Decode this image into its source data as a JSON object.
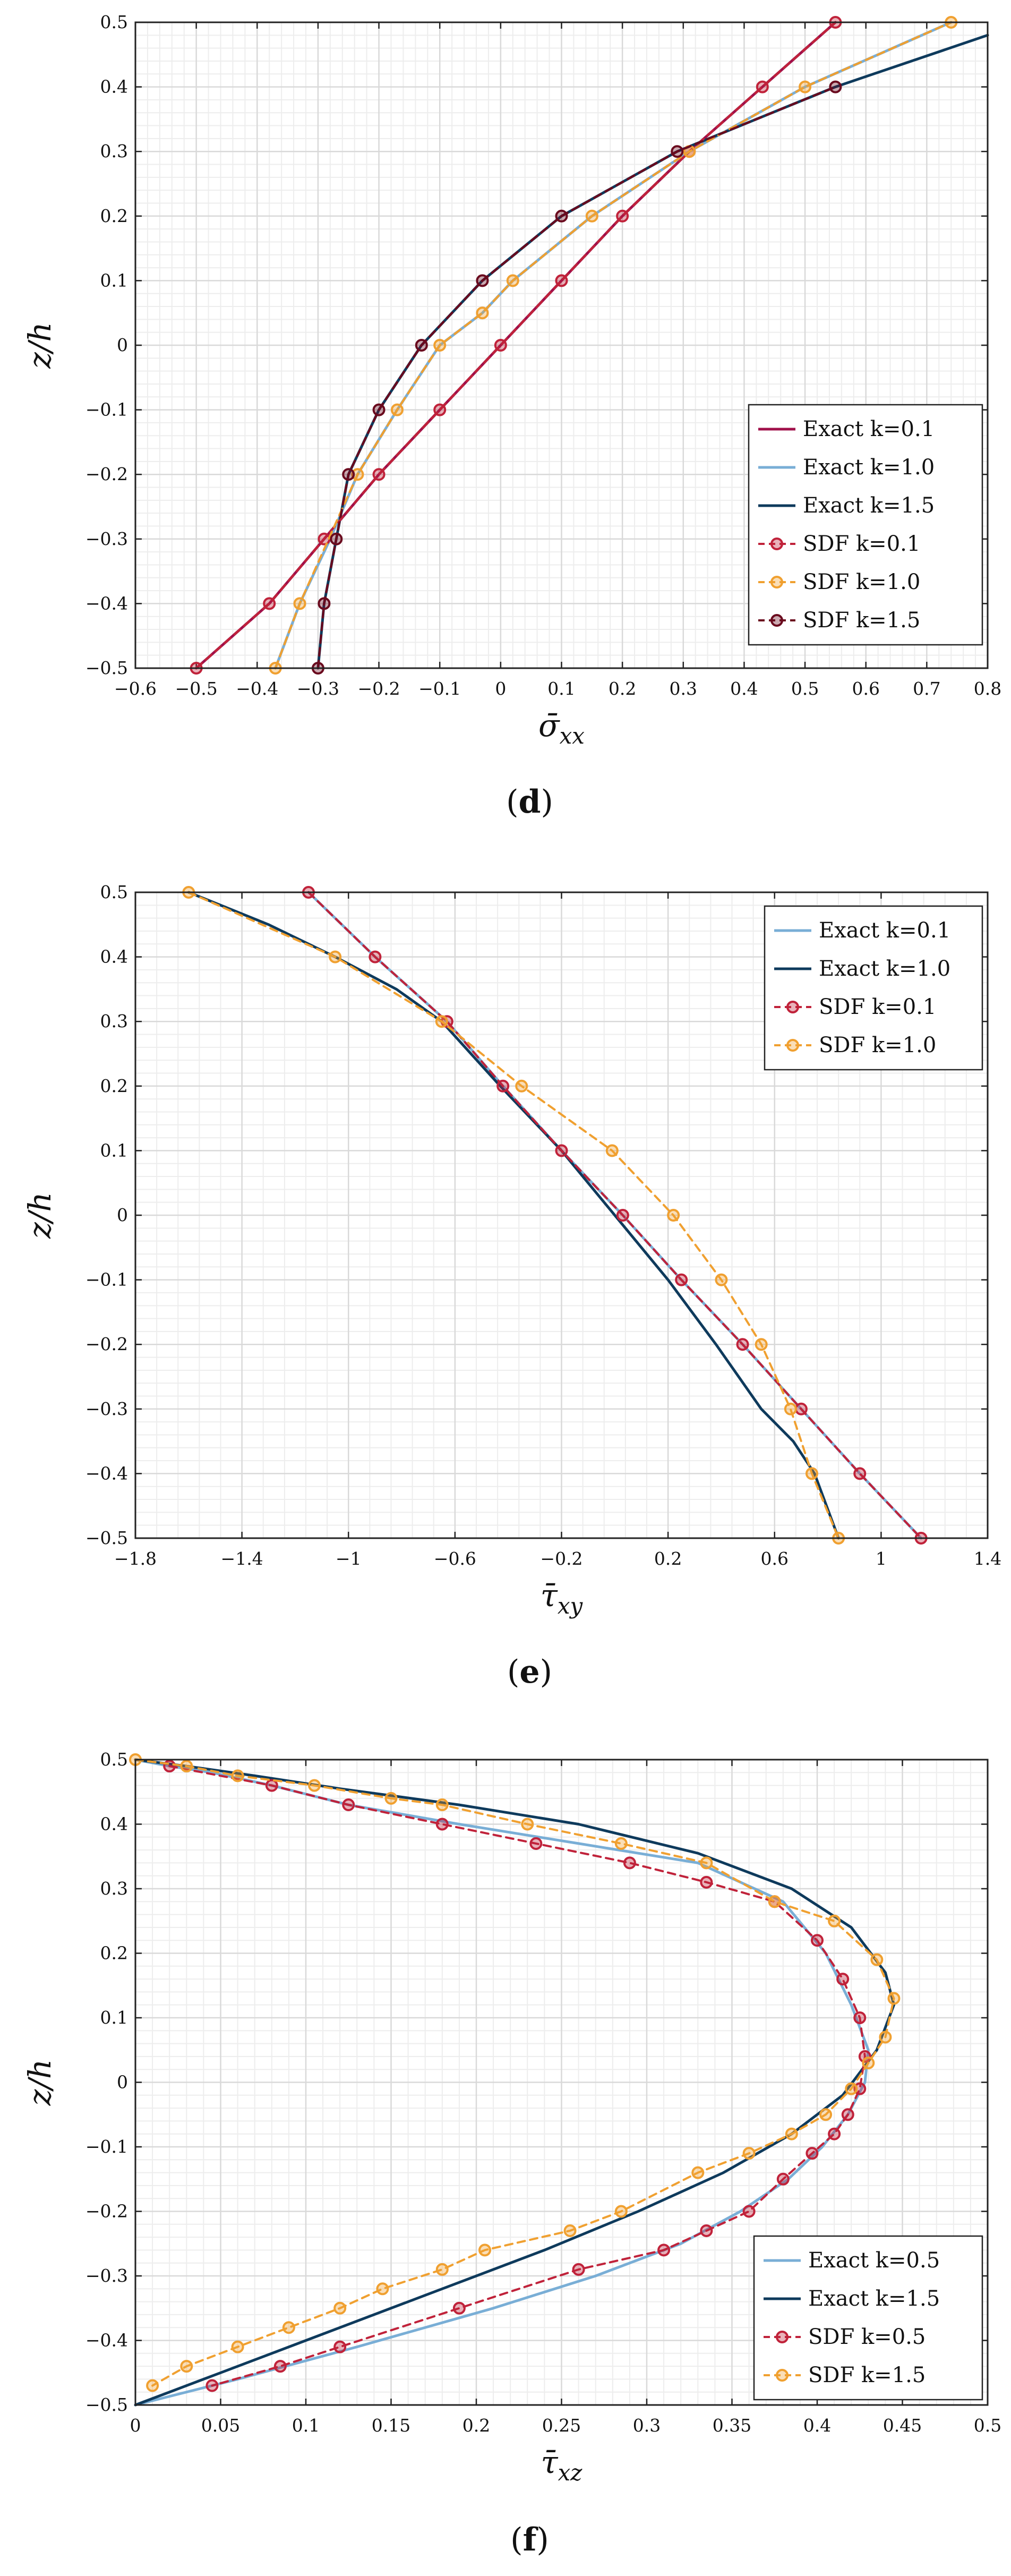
{
  "chart_data": [
    {
      "type": "line",
      "panel_label": "(d)",
      "xlabel": "σ̄_xx",
      "ylabel": "z/h",
      "xlim": [
        -0.6,
        0.8
      ],
      "ylim": [
        -0.5,
        0.5
      ],
      "xticks": [
        -0.6,
        -0.5,
        -0.4,
        -0.3,
        -0.2,
        -0.1,
        0,
        0.1,
        0.2,
        0.3,
        0.4,
        0.5,
        0.6,
        0.7,
        0.8
      ],
      "xtick_labels": [
        "−0.6",
        "−0.5",
        "−0.4",
        "−0.3",
        "−0.2",
        "−0.1",
        "0",
        "0.1",
        "0.2",
        "0.3",
        "0.4",
        "0.5",
        "0.6",
        "0.7",
        "0.8"
      ],
      "yticks": [
        -0.5,
        -0.4,
        -0.3,
        -0.2,
        -0.1,
        0,
        0.1,
        0.2,
        0.3,
        0.4,
        0.5
      ],
      "ytick_labels": [
        "−0.5",
        "−0.4",
        "−0.3",
        "−0.2",
        "−0.1",
        "0",
        "0.1",
        "0.2",
        "0.3",
        "0.4",
        "0.5"
      ],
      "grid": true,
      "legend_position": "lower-right",
      "series": [
        {
          "name": "Exact k=0.1",
          "style": "solid",
          "color": "#a0104a",
          "x": [
            -0.5,
            -0.38,
            -0.29,
            -0.2,
            -0.1,
            0,
            0.1,
            0.2,
            0.31,
            0.43,
            0.55
          ],
          "y": [
            -0.5,
            -0.4,
            -0.3,
            -0.2,
            -0.1,
            0,
            0.1,
            0.2,
            0.3,
            0.4,
            0.5
          ]
        },
        {
          "name": "Exact k=1.0",
          "style": "solid",
          "color": "#79aed6",
          "x": [
            -0.37,
            -0.33,
            -0.28,
            -0.235,
            -0.17,
            -0.1,
            -0.03,
            0.02,
            0.15,
            0.31,
            0.5,
            0.74
          ],
          "y": [
            -0.5,
            -0.4,
            -0.3,
            -0.2,
            -0.1,
            0,
            0.05,
            0.1,
            0.2,
            0.3,
            0.4,
            0.5
          ]
        },
        {
          "name": "Exact k=1.5",
          "style": "solid",
          "color": "#0e3a5c",
          "x": [
            -0.3,
            -0.29,
            -0.27,
            -0.25,
            -0.2,
            -0.13,
            -0.03,
            0.1,
            0.29,
            0.55,
            0.8
          ],
          "y": [
            -0.5,
            -0.4,
            -0.3,
            -0.2,
            -0.1,
            0,
            0.1,
            0.2,
            0.3,
            0.4,
            0.48
          ]
        },
        {
          "name": "SDF k=0.1",
          "style": "dashed",
          "color": "#c0223a",
          "markers": true,
          "x": [
            -0.5,
            -0.38,
            -0.29,
            -0.2,
            -0.1,
            0,
            0.1,
            0.2,
            0.31,
            0.43,
            0.55
          ],
          "y": [
            -0.5,
            -0.4,
            -0.3,
            -0.2,
            -0.1,
            0,
            0.1,
            0.2,
            0.3,
            0.4,
            0.5
          ]
        },
        {
          "name": "SDF k=1.0",
          "style": "dashed",
          "color": "#f0a030",
          "markers": true,
          "x": [
            -0.37,
            -0.33,
            -0.235,
            -0.17,
            -0.1,
            -0.03,
            0.02,
            0.15,
            0.31,
            0.5,
            0.74
          ],
          "y": [
            -0.5,
            -0.4,
            -0.2,
            -0.1,
            0,
            0.05,
            0.1,
            0.2,
            0.3,
            0.4,
            0.5
          ]
        },
        {
          "name": "SDF k=1.5",
          "style": "dashed",
          "color": "#6a0a1e",
          "markers": true,
          "x": [
            -0.3,
            -0.29,
            -0.27,
            -0.25,
            -0.2,
            -0.13,
            -0.03,
            0.1,
            0.29,
            0.55
          ],
          "y": [
            -0.5,
            -0.4,
            -0.3,
            -0.2,
            -0.1,
            0,
            0.1,
            0.2,
            0.3,
            0.4
          ]
        }
      ]
    },
    {
      "type": "line",
      "panel_label": "(e)",
      "xlabel": "τ̄_xy",
      "ylabel": "z/h",
      "xlim": [
        -1.8,
        1.4
      ],
      "ylim": [
        -0.5,
        0.5
      ],
      "xticks": [
        -1.8,
        -1.4,
        -1,
        -0.6,
        -0.2,
        0.2,
        0.6,
        1,
        1.4
      ],
      "xtick_labels": [
        "−1.8",
        "−1.4",
        "−1",
        "−0.6",
        "−0.2",
        "0.2",
        "0.6",
        "1",
        "1.4"
      ],
      "yticks": [
        -0.5,
        -0.4,
        -0.3,
        -0.2,
        -0.1,
        0,
        0.1,
        0.2,
        0.3,
        0.4,
        0.5
      ],
      "ytick_labels": [
        "−0.5",
        "−0.4",
        "−0.3",
        "−0.2",
        "−0.1",
        "0",
        "0.1",
        "0.2",
        "0.3",
        "0.4",
        "0.5"
      ],
      "grid": true,
      "legend_position": "top-right",
      "series": [
        {
          "name": "Exact k=0.1",
          "style": "solid",
          "color": "#79aed6",
          "x": [
            -1.15,
            -0.9,
            -0.63,
            -0.42,
            -0.2,
            0.03,
            0.25,
            0.48,
            0.7,
            0.92,
            1.15
          ],
          "y": [
            0.5,
            0.4,
            0.3,
            0.2,
            0.1,
            0,
            -0.1,
            -0.2,
            -0.3,
            -0.4,
            -0.5
          ]
        },
        {
          "name": "Exact k=1.0",
          "style": "solid",
          "color": "#0e3a5c",
          "x": [
            -1.6,
            -1.3,
            -1.05,
            -0.82,
            -0.65,
            -0.43,
            -0.2,
            0.0,
            0.2,
            0.38,
            0.55,
            0.67,
            0.75,
            0.84
          ],
          "y": [
            0.5,
            0.45,
            0.4,
            0.35,
            0.3,
            0.2,
            0.1,
            0,
            -0.1,
            -0.2,
            -0.3,
            -0.35,
            -0.4,
            -0.5
          ]
        },
        {
          "name": "SDF k=0.1",
          "style": "dashed",
          "color": "#c0223a",
          "markers": true,
          "x": [
            -1.15,
            -0.9,
            -0.63,
            -0.42,
            -0.2,
            0.03,
            0.25,
            0.48,
            0.7,
            0.92,
            1.15
          ],
          "y": [
            0.5,
            0.4,
            0.3,
            0.2,
            0.1,
            0,
            -0.1,
            -0.2,
            -0.3,
            -0.4,
            -0.5
          ]
        },
        {
          "name": "SDF k=1.0",
          "style": "dashed",
          "color": "#f0a030",
          "markers": true,
          "x": [
            -1.6,
            -1.05,
            -0.65,
            -0.35,
            -0.01,
            0.22,
            0.4,
            0.55,
            0.66,
            0.74,
            0.84
          ],
          "y": [
            0.5,
            0.4,
            0.3,
            0.2,
            0.1,
            0,
            -0.1,
            -0.2,
            -0.3,
            -0.4,
            -0.5
          ]
        }
      ]
    },
    {
      "type": "line",
      "panel_label": "(f)",
      "xlabel": "τ̄_xz",
      "ylabel": "z/h",
      "xlim": [
        0,
        0.5
      ],
      "ylim": [
        -0.5,
        0.5
      ],
      "xticks": [
        0,
        0.05,
        0.1,
        0.15,
        0.2,
        0.25,
        0.3,
        0.35,
        0.4,
        0.45,
        0.5
      ],
      "xtick_labels": [
        "0",
        "0.05",
        "0.1",
        "0.15",
        "0.2",
        "0.25",
        "0.3",
        "0.35",
        "0.4",
        "0.45",
        "0.5"
      ],
      "yticks": [
        -0.5,
        -0.4,
        -0.3,
        -0.2,
        -0.1,
        0,
        0.1,
        0.2,
        0.3,
        0.4,
        0.5
      ],
      "ytick_labels": [
        "−0.5",
        "−0.4",
        "−0.3",
        "−0.2",
        "−0.1",
        "0",
        "0.1",
        "0.2",
        "0.3",
        "0.4",
        "0.5"
      ],
      "grid": true,
      "legend_position": "lower-right",
      "series": [
        {
          "name": "Exact k=0.5",
          "style": "solid",
          "color": "#79aed6",
          "x": [
            0.0,
            0.02,
            0.045,
            0.08,
            0.125,
            0.19,
            0.26,
            0.33,
            0.38,
            0.405,
            0.42,
            0.43,
            0.428,
            0.418,
            0.403,
            0.383,
            0.355,
            0.32,
            0.27,
            0.21,
            0.13,
            0.06,
            0.0
          ],
          "y": [
            0.5,
            0.49,
            0.48,
            0.46,
            0.43,
            0.4,
            0.37,
            0.34,
            0.28,
            0.2,
            0.12,
            0.05,
            0.0,
            -0.05,
            -0.1,
            -0.15,
            -0.2,
            -0.25,
            -0.3,
            -0.35,
            -0.41,
            -0.46,
            -0.5
          ]
        },
        {
          "name": "Exact k=1.5",
          "style": "solid",
          "color": "#0e3a5c",
          "x": [
            0.0,
            0.03,
            0.07,
            0.12,
            0.19,
            0.26,
            0.33,
            0.385,
            0.42,
            0.44,
            0.445,
            0.435,
            0.415,
            0.385,
            0.345,
            0.295,
            0.24,
            0.18,
            0.11,
            0.05,
            0.0
          ],
          "y": [
            0.5,
            0.49,
            0.475,
            0.455,
            0.43,
            0.4,
            0.355,
            0.3,
            0.24,
            0.17,
            0.12,
            0.05,
            -0.02,
            -0.08,
            -0.14,
            -0.2,
            -0.26,
            -0.32,
            -0.39,
            -0.45,
            -0.5
          ]
        },
        {
          "name": "SDF k=0.5",
          "style": "dashed",
          "color": "#c0223a",
          "markers": true,
          "x": [
            0.02,
            0.08,
            0.125,
            0.18,
            0.235,
            0.29,
            0.335,
            0.375,
            0.4,
            0.415,
            0.425,
            0.428,
            0.425,
            0.418,
            0.41,
            0.397,
            0.38,
            0.36,
            0.335,
            0.31,
            0.26,
            0.19,
            0.12,
            0.085,
            0.045
          ],
          "y": [
            0.49,
            0.46,
            0.43,
            0.4,
            0.37,
            0.34,
            0.31,
            0.28,
            0.22,
            0.16,
            0.1,
            0.04,
            -0.01,
            -0.05,
            -0.08,
            -0.11,
            -0.15,
            -0.2,
            -0.23,
            -0.26,
            -0.29,
            -0.35,
            -0.41,
            -0.44,
            -0.47
          ]
        },
        {
          "name": "SDF k=1.5",
          "style": "dashed",
          "color": "#f0a030",
          "markers": true,
          "x": [
            0.0,
            0.03,
            0.06,
            0.105,
            0.15,
            0.18,
            0.23,
            0.285,
            0.335,
            0.375,
            0.41,
            0.435,
            0.445,
            0.44,
            0.43,
            0.42,
            0.405,
            0.385,
            0.36,
            0.33,
            0.285,
            0.255,
            0.205,
            0.18,
            0.145,
            0.12,
            0.09,
            0.06,
            0.03,
            0.01
          ],
          "y": [
            0.5,
            0.49,
            0.475,
            0.46,
            0.44,
            0.43,
            0.4,
            0.37,
            0.34,
            0.28,
            0.25,
            0.19,
            0.13,
            0.07,
            0.03,
            -0.01,
            -0.05,
            -0.08,
            -0.11,
            -0.14,
            -0.2,
            -0.23,
            -0.26,
            -0.29,
            -0.32,
            -0.35,
            -0.38,
            -0.41,
            -0.44,
            -0.47
          ]
        }
      ]
    }
  ]
}
